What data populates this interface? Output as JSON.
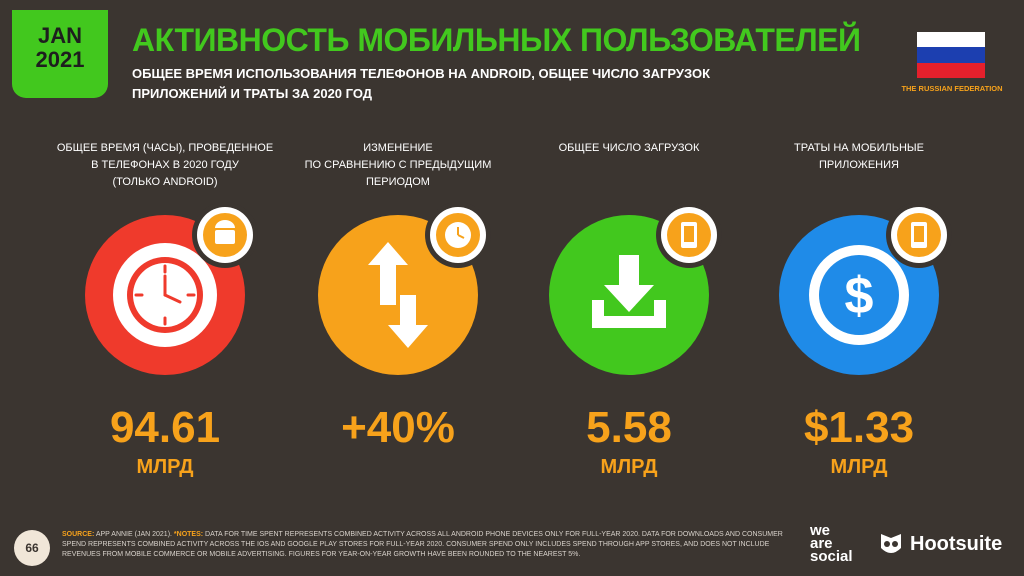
{
  "badge": {
    "line1": "JAN",
    "line2": "2021"
  },
  "header": {
    "title": "АКТИВНОСТЬ МОБИЛЬНЫХ ПОЛЬЗОВАТЕЛЕЙ",
    "subtitle_line1": "ОБЩЕЕ ВРЕМЯ ИСПОЛЬЗОВАНИЯ ТЕЛЕФОНОВ НА ANDROID, ОБЩЕЕ ЧИСЛО ЗАГРУЗОК",
    "subtitle_line2": "ПРИЛОЖЕНИЙ И ТРАТЫ ЗА 2020 ГОД"
  },
  "country": "THE RUSSIAN FEDERATION",
  "colors": {
    "green": "#42c81e",
    "orange": "#f7a21b",
    "red": "#ef3a2c",
    "blue": "#1f8be8",
    "bg": "#3b3530"
  },
  "stats": [
    {
      "label_lines": [
        "ОБЩЕЕ ВРЕМЯ (ЧАСЫ), ПРОВЕДЕННОЕ",
        "В ТЕЛЕФОНАХ В 2020 ГОДУ",
        "(ТОЛЬКО ANDROID)"
      ],
      "value": "94.61",
      "unit": "МЛРД",
      "icon": "clock-icon",
      "badge_icon": "android-icon"
    },
    {
      "label_lines": [
        "ИЗМЕНЕНИЕ",
        "ПО СРАВНЕНИЮ С ПРЕДЫДУЩИМ",
        "ПЕРИОДОМ"
      ],
      "value": "+40%",
      "unit": "",
      "icon": "up-down-arrows-icon",
      "badge_icon": "clock-icon"
    },
    {
      "label_lines": [
        "ОБЩЕЕ ЧИСЛО ЗАГРУЗОК"
      ],
      "value": "5.58",
      "unit": "МЛРД",
      "icon": "download-icon",
      "badge_icon": "phone-icon"
    },
    {
      "label_lines": [
        "ТРАТЫ НА МОБИЛЬНЫЕ",
        "ПРИЛОЖЕНИЯ"
      ],
      "value": "$1.33",
      "unit": "МЛРД",
      "icon": "dollar-icon",
      "badge_icon": "phone-icon"
    }
  ],
  "footer": {
    "page_number": "66",
    "source_label": "SOURCE:",
    "source_text": "APP ANNIE (JAN 2021).",
    "notes_label": "*NOTES:",
    "notes_text": "DATA FOR TIME SPENT REPRESENTS COMBINED ACTIVITY ACROSS ALL ANDROID PHONE DEVICES ONLY FOR FULL-YEAR 2020. DATA FOR DOWNLOADS AND CONSUMER SPEND REPRESENTS COMBINED ACTIVITY ACROSS THE IOS AND GOOGLE PLAY STORES FOR FULL-YEAR 2020. CONSUMER SPEND ONLY INCLUDES SPEND THROUGH APP STORES, AND DOES NOT INCLUDE REVENUES FROM MOBILE COMMERCE OR MOBILE ADVERTISING. FIGURES FOR YEAR-ON-YEAR GROWTH HAVE BEEN ROUNDED TO THE NEAREST 5%.",
    "brand1_l1": "we",
    "brand1_l2": "are",
    "brand1_l3": "social",
    "brand2": "Hootsuite"
  }
}
